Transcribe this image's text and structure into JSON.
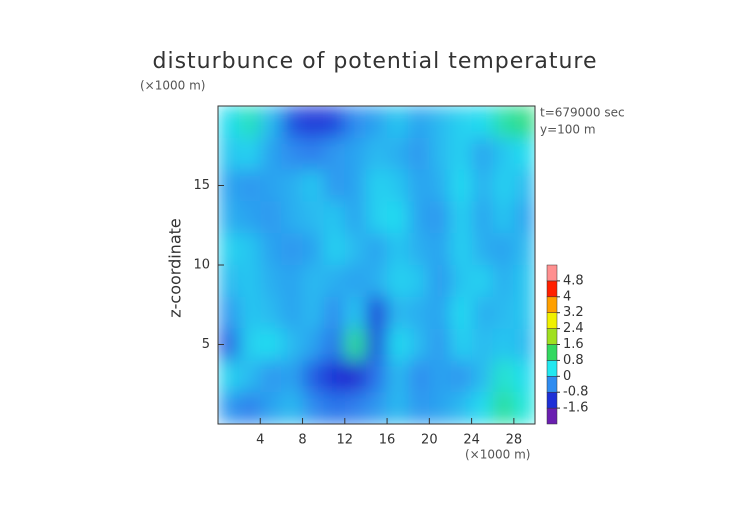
{
  "chart_data": {
    "type": "heatmap",
    "title": "disturbunce of potential temperature",
    "y_unit_label": "(×1000 m)",
    "x_unit_label": "(×1000 m)",
    "y_label": "z-coordinate",
    "annotations": [
      "t=679000 sec",
      "y=100 m"
    ],
    "xlim": [
      0,
      30
    ],
    "ylim": [
      0,
      20
    ],
    "xticks": [
      4,
      8,
      12,
      16,
      20,
      24,
      28
    ],
    "yticks": [
      5,
      10,
      15
    ],
    "x": [
      1,
      3,
      5,
      7,
      9,
      11,
      13,
      15,
      17,
      19,
      21,
      23,
      25,
      27,
      29
    ],
    "y": [
      19,
      17,
      15,
      13,
      11,
      9,
      7,
      5,
      3,
      1
    ],
    "z": [
      [
        0.3,
        0.7,
        0.0,
        -0.9,
        -1.1,
        -1.0,
        -0.4,
        -0.2,
        0.1,
        -0.2,
        0.0,
        0.2,
        0.3,
        0.8,
        1.0
      ],
      [
        0.1,
        0.2,
        -0.2,
        -0.4,
        -0.5,
        -0.3,
        -0.2,
        0.0,
        -0.1,
        -0.3,
        0.0,
        0.2,
        -0.2,
        0.1,
        0.3
      ],
      [
        -0.2,
        -0.3,
        -0.2,
        -0.1,
        0.1,
        -0.3,
        -0.2,
        0.2,
        0.1,
        -0.2,
        -0.1,
        0.3,
        -0.1,
        0.2,
        0.0
      ],
      [
        -0.1,
        -0.2,
        -0.3,
        -0.1,
        0.0,
        0.1,
        -0.2,
        0.2,
        0.3,
        -0.2,
        -0.3,
        0.2,
        -0.2,
        0.1,
        -0.2
      ],
      [
        0.2,
        0.1,
        -0.2,
        -0.3,
        -0.2,
        0.2,
        0.0,
        -0.2,
        0.1,
        -0.1,
        -0.2,
        0.2,
        -0.1,
        -0.2,
        0.0
      ],
      [
        0.0,
        0.1,
        -0.1,
        -0.2,
        0.0,
        -0.1,
        -0.2,
        -0.1,
        0.2,
        0.1,
        -0.3,
        0.1,
        0.2,
        -0.1,
        0.1
      ],
      [
        -0.3,
        0.1,
        0.0,
        -0.2,
        0.0,
        -0.4,
        0.1,
        -1.1,
        0.0,
        -0.1,
        -0.2,
        0.3,
        -0.1,
        0.0,
        0.1
      ],
      [
        -0.8,
        0.2,
        0.3,
        0.0,
        -0.2,
        -0.6,
        0.9,
        -1.0,
        0.3,
        0.0,
        -0.3,
        0.2,
        0.0,
        0.1,
        0.0
      ],
      [
        0.2,
        0.0,
        -0.3,
        -0.2,
        -0.8,
        -1.2,
        -1.3,
        -0.6,
        0.0,
        -0.4,
        -0.2,
        -0.3,
        0.0,
        0.6,
        0.3
      ],
      [
        -0.3,
        -0.5,
        -0.2,
        0.0,
        -0.4,
        -0.6,
        -0.5,
        -0.3,
        0.0,
        -0.3,
        -0.2,
        0.0,
        0.3,
        0.9,
        0.5
      ]
    ],
    "clim": [
      -2.4,
      5.6
    ],
    "colors": [
      "#6a1fb0",
      "#1e2fd6",
      "#2f8cf0",
      "#22e8f0",
      "#33d860",
      "#a0e020",
      "#f0f000",
      "#ffa000",
      "#ff2000",
      "#ff9090"
    ],
    "colorbar_ticks": [
      -1.6,
      -0.8,
      0,
      0.8,
      1.6,
      2.4,
      3.2,
      4,
      4.8
    ]
  }
}
